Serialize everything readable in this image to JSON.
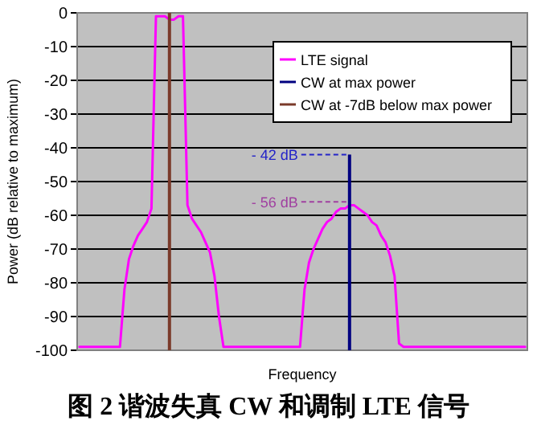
{
  "chart_data": {
    "type": "line",
    "xlabel": "Frequency",
    "ylabel": "Power (dB relative to maximum)",
    "categories": [
      null,
      null,
      null,
      null,
      null,
      null,
      null,
      null,
      null,
      null,
      null,
      null,
      null,
      null,
      null,
      null,
      null,
      null,
      null,
      null,
      null,
      null,
      null,
      null,
      null,
      null,
      null,
      null,
      null,
      null,
      null,
      null,
      null,
      null,
      null,
      null,
      null,
      null,
      null,
      null,
      null,
      null,
      null,
      null,
      null,
      null,
      null,
      null,
      null,
      null,
      null,
      null,
      null,
      null,
      null,
      null,
      null,
      null,
      null,
      null,
      null,
      null,
      null,
      null,
      null,
      null,
      null,
      null,
      null,
      null,
      null,
      null,
      null,
      null,
      null,
      null,
      null,
      null,
      null,
      null,
      null,
      null,
      null,
      null,
      null,
      null,
      null,
      null,
      null,
      null,
      null,
      null,
      null,
      null,
      null,
      null,
      null,
      null,
      null,
      null
    ],
    "ylim": [
      -100,
      0
    ],
    "yticks": [
      -100,
      -90,
      -80,
      -70,
      -60,
      -50,
      -40,
      -30,
      -20,
      -10,
      0
    ],
    "grid": "y",
    "legend": "top right",
    "line_style": "solid",
    "marker": "none",
    "series": [
      {
        "name": "LTE signal",
        "color": "#ff00ff",
        "values": [
          -99,
          -99,
          -99,
          -99,
          -99,
          -99,
          -99,
          -99,
          -99,
          -99,
          -82,
          -73,
          -69,
          -66,
          -64,
          -62,
          -58,
          -1,
          -1,
          -1,
          -2,
          -2,
          -1,
          -1,
          -57,
          -61,
          -63,
          -65,
          -68,
          -71,
          -78,
          -90,
          -99,
          -99,
          -99,
          -99,
          -99,
          -99,
          -99,
          -99,
          -99,
          -99,
          -99,
          -99,
          -99,
          -99,
          -99,
          -99,
          -99,
          -99,
          -82,
          -74,
          -70,
          -67,
          -64,
          -62,
          -61,
          -59,
          -58,
          -58,
          -57,
          -57,
          -58,
          -59,
          -60,
          -62,
          -63,
          -66,
          -68,
          -72,
          -78,
          -98,
          -99,
          -99,
          -99,
          -99,
          -99,
          -99,
          -99,
          -99,
          -99,
          -99,
          -99,
          -99,
          -99,
          -99,
          -99,
          -99,
          -99,
          -99,
          -99,
          -99,
          -99,
          -99,
          -99,
          -99,
          -99,
          -99,
          -99,
          -99
        ]
      },
      {
        "name": "CW at max power",
        "type": "bar",
        "color": "#000080",
        "values": [
          null,
          null,
          null,
          null,
          null,
          null,
          null,
          null,
          null,
          null,
          null,
          null,
          null,
          null,
          null,
          null,
          null,
          null,
          null,
          null,
          null,
          null,
          null,
          null,
          null,
          null,
          null,
          null,
          null,
          null,
          null,
          null,
          null,
          null,
          null,
          null,
          null,
          null,
          null,
          null,
          null,
          null,
          null,
          null,
          null,
          null,
          null,
          null,
          null,
          null,
          null,
          null,
          null,
          null,
          null,
          null,
          null,
          null,
          null,
          null,
          58,
          null,
          null,
          null,
          null,
          null,
          null,
          null,
          null,
          null,
          null,
          null,
          null,
          null,
          null,
          null,
          null,
          null,
          null,
          null,
          null,
          null,
          null,
          null,
          null,
          null,
          null,
          null,
          null,
          null,
          null,
          null,
          null,
          null,
          null,
          null,
          null,
          null,
          null,
          null
        ],
        "base": [
          null,
          null,
          null,
          null,
          null,
          null,
          null,
          null,
          null,
          null,
          null,
          null,
          null,
          null,
          null,
          null,
          null,
          null,
          null,
          null,
          null,
          null,
          null,
          null,
          null,
          null,
          null,
          null,
          null,
          null,
          null,
          null,
          null,
          null,
          null,
          null,
          null,
          null,
          null,
          null,
          null,
          null,
          null,
          null,
          null,
          null,
          null,
          null,
          null,
          null,
          null,
          null,
          null,
          null,
          null,
          null,
          null,
          null,
          null,
          null,
          -100,
          null,
          null,
          null,
          null,
          null,
          null,
          null,
          null,
          null,
          null,
          null,
          null,
          null,
          null,
          null,
          null,
          null,
          null,
          null,
          null,
          null,
          null,
          null,
          null,
          null,
          null,
          null,
          null,
          null,
          null,
          null,
          null,
          null,
          null,
          null,
          null,
          null,
          null,
          null
        ]
      },
      {
        "name": "CW at -7dB below max power",
        "type": "bar",
        "color": "#7a3a2a",
        "values": [
          null,
          null,
          null,
          null,
          null,
          null,
          null,
          null,
          null,
          null,
          null,
          null,
          null,
          null,
          null,
          null,
          null,
          null,
          null,
          null,
          100,
          null,
          null,
          null,
          null,
          null,
          null,
          null,
          null,
          null,
          null,
          null,
          null,
          null,
          null,
          null,
          null,
          null,
          null,
          null,
          null,
          null,
          null,
          null,
          null,
          null,
          null,
          null,
          null,
          null,
          null,
          null,
          null,
          null,
          null,
          null,
          null,
          null,
          null,
          null,
          null,
          null,
          null,
          null,
          null,
          null,
          null,
          null,
          null,
          null,
          null,
          null,
          null,
          null,
          null,
          null,
          null,
          null,
          null,
          null,
          null,
          null,
          null,
          null,
          null,
          null,
          null,
          null,
          null,
          null,
          null,
          null,
          null,
          null,
          null,
          null,
          null,
          null,
          null,
          null
        ],
        "base": [
          null,
          null,
          null,
          null,
          null,
          null,
          null,
          null,
          null,
          null,
          null,
          null,
          null,
          null,
          null,
          null,
          null,
          null,
          null,
          null,
          -100,
          null,
          null,
          null,
          null,
          null,
          null,
          null,
          null,
          null,
          null,
          null,
          null,
          null,
          null,
          null,
          null,
          null,
          null,
          null,
          null,
          null,
          null,
          null,
          null,
          null,
          null,
          null,
          null,
          null,
          null,
          null,
          null,
          null,
          null,
          null,
          null,
          null,
          null,
          null,
          null,
          null,
          null,
          null,
          null,
          null,
          null,
          null,
          null,
          null,
          null,
          null,
          null,
          null,
          null,
          null,
          null,
          null,
          null,
          null,
          null,
          null,
          null,
          null,
          null,
          null,
          null,
          null,
          null,
          null,
          null,
          null,
          null,
          null,
          null,
          null,
          null,
          null,
          null,
          null
        ]
      }
    ],
    "ref_lines": [
      {
        "axis": "y",
        "value": -42,
        "label": "- 42 dB",
        "color": "#2424c8",
        "line_style": "dashed"
      },
      {
        "axis": "y",
        "value": -56,
        "label": "- 56 dB",
        "color": "#a040a0",
        "line_style": "dashed"
      }
    ],
    "annotations": [
      "图 2 谐波失真 CW 和调制 LTE 信号"
    ]
  }
}
